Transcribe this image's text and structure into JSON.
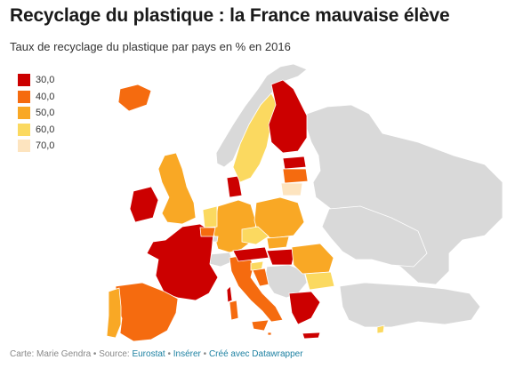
{
  "header": {
    "title": "Recyclage du plastique : la France mauvaise élève",
    "subtitle": "Taux de recyclage du plastique par pays en % en 2016"
  },
  "legend": {
    "items": [
      {
        "label": "30,0",
        "color": "#cc0000"
      },
      {
        "label": "40,0",
        "color": "#f56b0f"
      },
      {
        "label": "50,0",
        "color": "#f9a825"
      },
      {
        "label": "60,0",
        "color": "#fbd960"
      },
      {
        "label": "70,0",
        "color": "#fde4bf"
      }
    ]
  },
  "map_colors": {
    "no_data": "#d9d9d9",
    "c30": "#cc0000",
    "c40": "#f56b0f",
    "c50": "#f9a825",
    "c60": "#fbd960",
    "c70": "#fde4bf"
  },
  "footer": {
    "credit_prefix": "Carte: Marie Gendra • Source: ",
    "source": "Eurostat",
    "sep1": " • ",
    "embed": "Insérer",
    "sep2": " • ",
    "made_with": "Créé avec Datawrapper"
  }
}
